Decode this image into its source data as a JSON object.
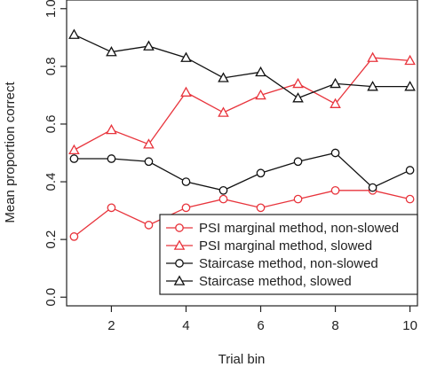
{
  "chart_data": {
    "type": "line",
    "title": "",
    "xlabel": "Trial bin",
    "ylabel": "Mean proportion correct",
    "xlim": [
      0.8,
      10.2
    ],
    "ylim": [
      -0.03,
      1.03
    ],
    "x_ticks": [
      2,
      4,
      6,
      8,
      10
    ],
    "y_ticks": [
      0.0,
      0.2,
      0.4,
      0.6,
      0.8,
      1.0
    ],
    "x_tick_labels": [
      "2",
      "4",
      "6",
      "8",
      "10"
    ],
    "y_tick_labels": [
      "0.0",
      "0.2",
      "0.4",
      "0.6",
      "0.8",
      "1.0"
    ],
    "grid": false,
    "legend_position": "bottom-right",
    "x": [
      1,
      2,
      3,
      4,
      5,
      6,
      7,
      8,
      9,
      10
    ],
    "series": [
      {
        "name": "PSI marginal method, non-slowed",
        "color": "#e8343c",
        "marker": "circle",
        "values": [
          0.21,
          0.31,
          0.25,
          0.31,
          0.34,
          0.31,
          0.34,
          0.37,
          0.37,
          0.34
        ]
      },
      {
        "name": "PSI marginal method, slowed",
        "color": "#e8343c",
        "marker": "triangle",
        "values": [
          0.51,
          0.58,
          0.53,
          0.71,
          0.64,
          0.7,
          0.74,
          0.67,
          0.83,
          0.82
        ]
      },
      {
        "name": "Staircase method, non-slowed",
        "color": "#111111",
        "marker": "circle",
        "values": [
          0.48,
          0.48,
          0.47,
          0.4,
          0.37,
          0.43,
          0.47,
          0.5,
          0.38,
          0.44
        ]
      },
      {
        "name": "Staircase method, slowed",
        "color": "#111111",
        "marker": "triangle",
        "values": [
          0.91,
          0.85,
          0.87,
          0.83,
          0.76,
          0.78,
          0.69,
          0.74,
          0.73,
          0.73
        ]
      }
    ]
  }
}
